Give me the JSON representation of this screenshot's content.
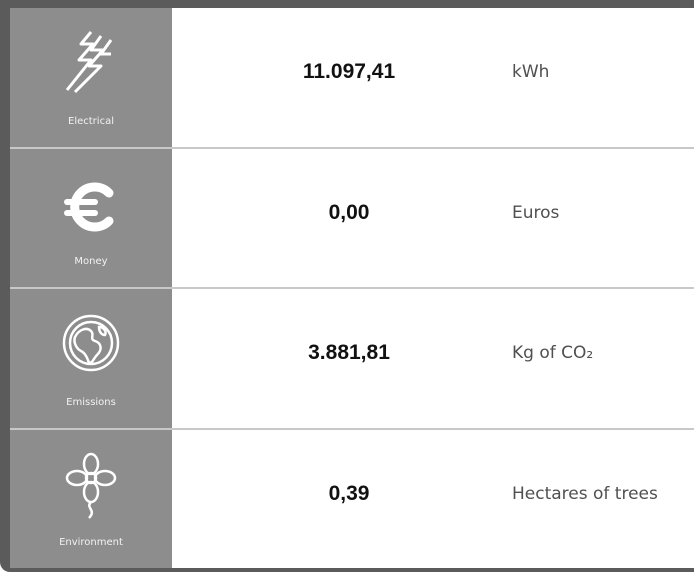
{
  "table": {
    "rows": [
      {
        "label": "Electrical",
        "value": "11.097,41",
        "unit": "kWh"
      },
      {
        "label": "Money",
        "value": "0,00",
        "unit": "Euros"
      },
      {
        "label": "Emissions",
        "value": "3.881,81",
        "unit": "Kg of CO₂"
      },
      {
        "label": "Environment",
        "value": "0,39",
        "unit": "Hectares of trees"
      }
    ]
  }
}
